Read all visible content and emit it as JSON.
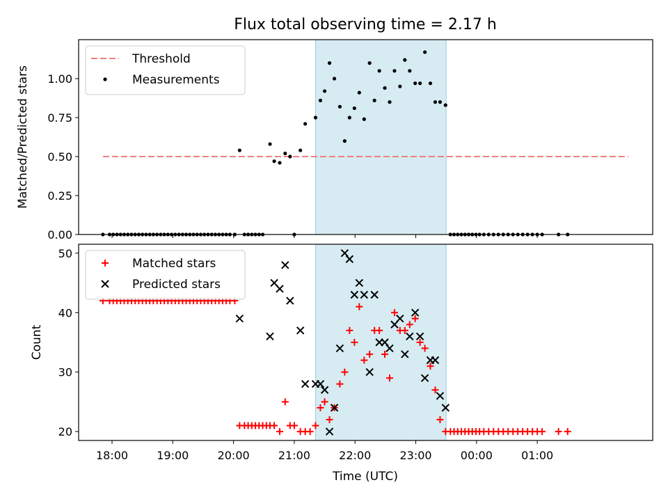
{
  "chart_data": [
    {
      "type": "scatter",
      "title": "Flux total observing time = 2.17 h",
      "xlabel": "",
      "ylabel": "Matched/Predicted stars",
      "xlim": [
        17.45,
        26.9
      ],
      "ylim": [
        0.0,
        1.25
      ],
      "yticks": [
        0.0,
        0.25,
        0.5,
        0.75,
        1.0
      ],
      "ytick_labels": [
        "0.00",
        "0.25",
        "0.50",
        "0.75",
        "1.00"
      ],
      "x_unit": "hours (UTC, >24 = next day)",
      "shaded_span": [
        21.35,
        23.5
      ],
      "legend_position": "upper-left",
      "threshold": {
        "name": "Threshold",
        "value": 0.5,
        "x": [
          17.85,
          26.5
        ],
        "color": "#f07f7f",
        "style": "dashed"
      },
      "series": [
        {
          "name": "Measurements",
          "marker": "dot",
          "color": "#000000",
          "x": [
            17.85,
            17.96,
            18.02,
            18.08,
            18.14,
            18.2,
            18.26,
            18.32,
            18.38,
            18.44,
            18.5,
            18.56,
            18.62,
            18.68,
            18.74,
            18.8,
            18.86,
            18.92,
            18.98,
            19.04,
            19.1,
            19.16,
            19.22,
            19.28,
            19.34,
            19.4,
            19.46,
            19.52,
            19.58,
            19.64,
            19.7,
            19.76,
            19.82,
            19.88,
            19.94,
            20.02,
            20.1,
            20.18,
            20.24,
            20.3,
            20.36,
            20.42,
            20.48,
            20.6,
            20.67,
            20.76,
            20.85,
            20.93,
            21.0,
            21.1,
            21.18,
            21.35,
            21.43,
            21.5,
            21.58,
            21.66,
            21.75,
            21.83,
            21.91,
            21.99,
            22.07,
            22.15,
            22.24,
            22.32,
            22.4,
            22.49,
            22.57,
            22.65,
            22.74,
            22.82,
            22.9,
            22.99,
            23.07,
            23.15,
            23.24,
            23.32,
            23.4,
            23.49,
            23.57,
            23.63,
            23.69,
            23.75,
            23.81,
            23.87,
            23.93,
            23.99,
            24.05,
            24.12,
            24.2,
            24.28,
            24.36,
            24.44,
            24.52,
            24.6,
            24.68,
            24.76,
            24.84,
            24.92,
            25.0,
            25.08,
            25.35,
            25.5
          ],
          "y": [
            0.0,
            0.0,
            0.0,
            0.0,
            0.0,
            0.0,
            0.0,
            0.0,
            0.0,
            0.0,
            0.0,
            0.0,
            0.0,
            0.0,
            0.0,
            0.0,
            0.0,
            0.0,
            0.0,
            0.0,
            0.0,
            0.0,
            0.0,
            0.0,
            0.0,
            0.0,
            0.0,
            0.0,
            0.0,
            0.0,
            0.0,
            0.0,
            0.0,
            0.0,
            0.0,
            0.0,
            0.54,
            0.0,
            0.0,
            0.0,
            0.0,
            0.0,
            0.0,
            0.58,
            0.47,
            0.46,
            0.52,
            0.5,
            0.0,
            0.54,
            0.71,
            0.75,
            0.86,
            0.92,
            1.1,
            1.0,
            0.82,
            0.6,
            0.75,
            0.81,
            0.91,
            0.74,
            1.1,
            0.86,
            1.05,
            0.94,
            0.85,
            1.05,
            0.95,
            1.12,
            1.05,
            0.97,
            0.97,
            1.17,
            0.97,
            0.85,
            0.85,
            0.83,
            0.0,
            0.0,
            0.0,
            0.0,
            0.0,
            0.0,
            0.0,
            0.0,
            0.0,
            0.0,
            0.0,
            0.0,
            0.0,
            0.0,
            0.0,
            0.0,
            0.0,
            0.0,
            0.0,
            0.0,
            0.0,
            0.0,
            0.0,
            0.0
          ]
        }
      ]
    },
    {
      "type": "scatter",
      "title": "",
      "xlabel": "Time (UTC)",
      "ylabel": "Count",
      "xlim": [
        17.45,
        26.9
      ],
      "ylim": [
        18.5,
        51.5
      ],
      "yticks": [
        20,
        30,
        40,
        50
      ],
      "ytick_labels": [
        "20",
        "30",
        "40",
        "50"
      ],
      "xticks": [
        18,
        19,
        20,
        21,
        22,
        23,
        24,
        25
      ],
      "xtick_labels": [
        "18:00",
        "19:00",
        "20:00",
        "21:00",
        "22:00",
        "23:00",
        "00:00",
        "01:00"
      ],
      "shaded_span": [
        21.35,
        23.5
      ],
      "legend_position": "upper-left",
      "series": [
        {
          "name": "Matched stars",
          "marker": "plus",
          "color": "#ff0000",
          "x": [
            17.85,
            17.96,
            18.02,
            18.08,
            18.14,
            18.2,
            18.26,
            18.32,
            18.38,
            18.44,
            18.5,
            18.56,
            18.62,
            18.68,
            18.74,
            18.8,
            18.86,
            18.92,
            18.98,
            19.04,
            19.1,
            19.16,
            19.22,
            19.28,
            19.34,
            19.4,
            19.46,
            19.52,
            19.58,
            19.64,
            19.7,
            19.76,
            19.82,
            19.88,
            19.94,
            20.02,
            20.1,
            20.18,
            20.24,
            20.3,
            20.36,
            20.42,
            20.48,
            20.54,
            20.6,
            20.67,
            20.76,
            20.85,
            20.93,
            21.0,
            21.1,
            21.18,
            21.26,
            21.35,
            21.43,
            21.5,
            21.58,
            21.66,
            21.75,
            21.83,
            21.91,
            21.99,
            22.07,
            22.15,
            22.24,
            22.32,
            22.4,
            22.49,
            22.57,
            22.65,
            22.74,
            22.82,
            22.9,
            22.99,
            23.07,
            23.15,
            23.24,
            23.32,
            23.4,
            23.49,
            23.57,
            23.63,
            23.69,
            23.75,
            23.81,
            23.87,
            23.93,
            23.99,
            24.05,
            24.12,
            24.2,
            24.28,
            24.36,
            24.44,
            24.52,
            24.6,
            24.68,
            24.76,
            24.84,
            24.92,
            25.0,
            25.08,
            25.35,
            25.5
          ],
          "y": [
            42,
            42,
            42,
            42,
            42,
            42,
            42,
            42,
            42,
            42,
            42,
            42,
            42,
            42,
            42,
            42,
            42,
            42,
            42,
            42,
            42,
            42,
            42,
            42,
            42,
            42,
            42,
            42,
            42,
            42,
            42,
            42,
            42,
            42,
            42,
            42,
            21,
            21,
            21,
            21,
            21,
            21,
            21,
            21,
            21,
            21,
            20,
            25,
            21,
            21,
            20,
            20,
            20,
            21,
            24,
            25,
            22,
            24,
            28,
            30,
            37,
            35,
            41,
            32,
            33,
            37,
            37,
            33,
            29,
            40,
            37,
            37,
            38,
            39,
            35,
            34,
            31,
            27,
            22,
            20,
            20,
            20,
            20,
            20,
            20,
            20,
            20,
            20,
            20,
            20,
            20,
            20,
            20,
            20,
            20,
            20,
            20,
            20,
            20,
            20,
            20,
            20,
            20,
            20
          ]
        },
        {
          "name": "Predicted stars",
          "marker": "x",
          "color": "#000000",
          "x": [
            20.1,
            20.6,
            20.67,
            20.76,
            20.85,
            20.93,
            21.1,
            21.18,
            21.35,
            21.43,
            21.5,
            21.58,
            21.66,
            21.75,
            21.83,
            21.91,
            21.99,
            22.07,
            22.15,
            22.24,
            22.32,
            22.4,
            22.49,
            22.57,
            22.65,
            22.74,
            22.82,
            22.9,
            22.99,
            23.07,
            23.15,
            23.24,
            23.32,
            23.4,
            23.49
          ],
          "y": [
            39,
            36,
            45,
            44,
            48,
            42,
            37,
            28,
            28,
            28,
            27,
            20,
            24,
            34,
            50,
            49,
            43,
            45,
            43,
            30,
            43,
            35,
            35,
            34,
            38,
            39,
            33,
            36,
            40,
            36,
            29,
            32,
            32,
            26,
            24
          ]
        }
      ]
    }
  ]
}
